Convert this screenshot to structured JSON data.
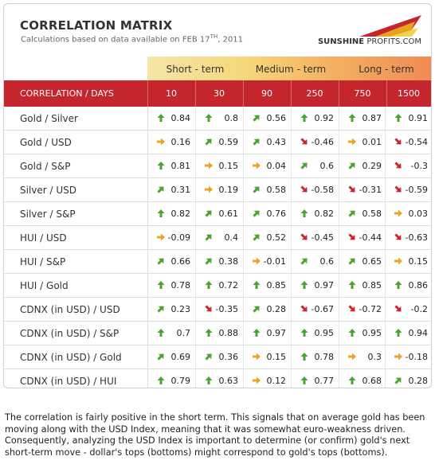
{
  "header": {
    "title": "CORRELATION MATRIX",
    "subtitle_prefix": "Calculations based on data available on  FEB 17",
    "subtitle_sup": "TH",
    "subtitle_suffix": ", 2011",
    "logo_bold": "SUNSHINE",
    "logo_regular": "PROFITS.COM"
  },
  "terms": [
    "Short - term",
    "Medium - term",
    "Long - term"
  ],
  "columns": {
    "label": "CORRELATION / DAYS",
    "days": [
      "10",
      "30",
      "90",
      "250",
      "750",
      "1500"
    ]
  },
  "colors": {
    "header_red": "#c5262e",
    "arrow_green": "#4aa52e",
    "arrow_orange": "#f0a020",
    "arrow_red": "#c8282e"
  },
  "rows": [
    {
      "pair": "Gold / Silver",
      "values": [
        {
          "v": "0.84",
          "a": "up"
        },
        {
          "v": "0.8",
          "a": "up"
        },
        {
          "v": "0.56",
          "a": "upright"
        },
        {
          "v": "0.92",
          "a": "up"
        },
        {
          "v": "0.87",
          "a": "up"
        },
        {
          "v": "0.91",
          "a": "up"
        }
      ]
    },
    {
      "pair": "Gold / USD",
      "values": [
        {
          "v": "0.16",
          "a": "right"
        },
        {
          "v": "0.59",
          "a": "upright"
        },
        {
          "v": "0.43",
          "a": "upright"
        },
        {
          "v": "-0.46",
          "a": "downright"
        },
        {
          "v": "0.01",
          "a": "right"
        },
        {
          "v": "-0.54",
          "a": "downright"
        }
      ]
    },
    {
      "pair": "Gold / S&P",
      "values": [
        {
          "v": "0.81",
          "a": "up"
        },
        {
          "v": "0.15",
          "a": "right"
        },
        {
          "v": "0.04",
          "a": "right"
        },
        {
          "v": "0.6",
          "a": "upright"
        },
        {
          "v": "0.29",
          "a": "upright"
        },
        {
          "v": "-0.3",
          "a": "downright"
        }
      ]
    },
    {
      "pair": "Silver / USD",
      "values": [
        {
          "v": "0.31",
          "a": "upright"
        },
        {
          "v": "0.19",
          "a": "right"
        },
        {
          "v": "0.58",
          "a": "upright"
        },
        {
          "v": "-0.58",
          "a": "downright"
        },
        {
          "v": "-0.31",
          "a": "downright"
        },
        {
          "v": "-0.59",
          "a": "downright"
        }
      ]
    },
    {
      "pair": "Silver / S&P",
      "values": [
        {
          "v": "0.82",
          "a": "up"
        },
        {
          "v": "0.61",
          "a": "upright"
        },
        {
          "v": "0.76",
          "a": "upright"
        },
        {
          "v": "0.82",
          "a": "up"
        },
        {
          "v": "0.58",
          "a": "upright"
        },
        {
          "v": "0.03",
          "a": "right"
        }
      ]
    },
    {
      "pair": "HUI / USD",
      "values": [
        {
          "v": "-0.09",
          "a": "right"
        },
        {
          "v": "0.4",
          "a": "upright"
        },
        {
          "v": "0.52",
          "a": "upright"
        },
        {
          "v": "-0.45",
          "a": "downright"
        },
        {
          "v": "-0.44",
          "a": "downright"
        },
        {
          "v": "-0.63",
          "a": "downright"
        }
      ]
    },
    {
      "pair": "HUI / S&P",
      "values": [
        {
          "v": "0.66",
          "a": "upright"
        },
        {
          "v": "0.38",
          "a": "upright"
        },
        {
          "v": "-0.01",
          "a": "right"
        },
        {
          "v": "0.6",
          "a": "upright"
        },
        {
          "v": "0.65",
          "a": "upright"
        },
        {
          "v": "0.15",
          "a": "right"
        }
      ]
    },
    {
      "pair": "HUI / Gold",
      "values": [
        {
          "v": "0.78",
          "a": "up"
        },
        {
          "v": "0.72",
          "a": "up"
        },
        {
          "v": "0.85",
          "a": "up"
        },
        {
          "v": "0.97",
          "a": "up"
        },
        {
          "v": "0.85",
          "a": "up"
        },
        {
          "v": "0.86",
          "a": "up"
        }
      ]
    },
    {
      "pair": "CDNX (in USD) / USD",
      "values": [
        {
          "v": "0.23",
          "a": "upright"
        },
        {
          "v": "-0.35",
          "a": "downright"
        },
        {
          "v": "0.28",
          "a": "upright"
        },
        {
          "v": "-0.67",
          "a": "downright"
        },
        {
          "v": "-0.72",
          "a": "downright"
        },
        {
          "v": "-0.2",
          "a": "downright"
        }
      ]
    },
    {
      "pair": "CDNX (in USD) / S&P",
      "values": [
        {
          "v": "0.7",
          "a": "up"
        },
        {
          "v": "0.88",
          "a": "up"
        },
        {
          "v": "0.97",
          "a": "up"
        },
        {
          "v": "0.95",
          "a": "up"
        },
        {
          "v": "0.95",
          "a": "up"
        },
        {
          "v": "0.94",
          "a": "up"
        }
      ]
    },
    {
      "pair": "CDNX (in USD) / Gold",
      "values": [
        {
          "v": "0.69",
          "a": "upright"
        },
        {
          "v": "0.36",
          "a": "upright"
        },
        {
          "v": "0.15",
          "a": "right"
        },
        {
          "v": "0.78",
          "a": "up"
        },
        {
          "v": "0.3",
          "a": "right"
        },
        {
          "v": "-0.18",
          "a": "right"
        }
      ]
    },
    {
      "pair": "CDNX (in USD) / HUI",
      "values": [
        {
          "v": "0.79",
          "a": "up"
        },
        {
          "v": "0.63",
          "a": "up"
        },
        {
          "v": "0.12",
          "a": "right"
        },
        {
          "v": "0.77",
          "a": "up"
        },
        {
          "v": "0.68",
          "a": "up"
        },
        {
          "v": "0.28",
          "a": "upright"
        }
      ]
    }
  ],
  "footnote": "The correlation is fairly positive in the short term. This signals that on average gold has been moving along with the USD Index, meaning that it was somewhat euro-weakness driven. Consequently, analyzing the USD Index is important to determine (or confirm) gold's next short-term move - dollar's tops (bottoms) might correspond to gold's tops (bottoms)."
}
